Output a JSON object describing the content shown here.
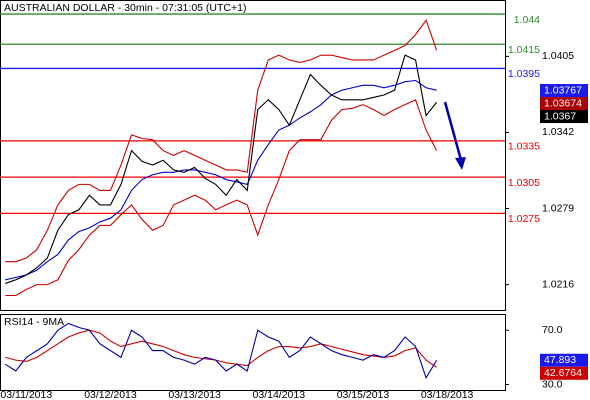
{
  "chart_data": [
    {
      "type": "line",
      "title": "AUSTRALIAN DOLLAR - 30min - 07:31:05 (UTC+1)",
      "ylim": [
        1.0195,
        1.045
      ],
      "yticks": [
        1.0405,
        1.0342,
        1.0279,
        1.0216
      ],
      "levels": [
        {
          "value": 1.044,
          "color": "#2e8b2e"
        },
        {
          "value": 1.0415,
          "color": "#2e8b2e"
        },
        {
          "value": 1.0395,
          "color": "#1a1aee"
        },
        {
          "value": 1.0335,
          "color": "#ee0000"
        },
        {
          "value": 1.0305,
          "color": "#ee0000"
        },
        {
          "value": 1.0275,
          "color": "#ee0000"
        }
      ],
      "markers": [
        {
          "value": 1.03767,
          "color": "#1a1aee"
        },
        {
          "value": 1.03674,
          "color": "#aa0000"
        },
        {
          "value": 1.0367,
          "color": "#000000"
        }
      ],
      "series": [
        {
          "color": "#cc0000",
          "values": [
            1.0235,
            1.0235,
            1.0238,
            1.0245,
            1.0261,
            1.0282,
            1.0294,
            1.0299,
            1.0299,
            1.0294,
            1.0294,
            1.0315,
            1.034,
            1.0337,
            1.0336,
            1.0327,
            1.0323,
            1.0327,
            1.0323,
            1.0319,
            1.0315,
            1.0311,
            1.0311,
            1.0309,
            1.0377,
            1.0402,
            1.0406,
            1.0402,
            1.04,
            1.0402,
            1.0406,
            1.0406,
            1.0404,
            1.0402,
            1.0402,
            1.0402,
            1.0406,
            1.041,
            1.0414,
            1.0423,
            1.0435,
            1.041,
            null,
            null,
            null,
            null,
            null,
            null
          ]
        },
        {
          "color": "#cc0000",
          "values": [
            1.0207,
            1.0207,
            1.0212,
            1.0216,
            1.0216,
            1.022,
            1.0236,
            1.0245,
            1.0257,
            1.0265,
            1.0265,
            1.0274,
            1.0282,
            1.027,
            1.0261,
            1.0265,
            1.0282,
            1.0286,
            1.029,
            1.0286,
            1.0278,
            1.0282,
            1.0286,
            1.0282,
            1.0257,
            1.0282,
            1.0303,
            1.0327,
            1.0336,
            1.0336,
            1.0336,
            1.0352,
            1.0361,
            1.0362,
            1.0365,
            1.0361,
            1.0356,
            1.0361,
            1.0365,
            1.0369,
            1.0344,
            1.0327,
            null,
            null,
            null,
            null,
            null,
            null
          ]
        },
        {
          "color": "#0000cc",
          "values": [
            1.022,
            1.0222,
            1.0224,
            1.0228,
            1.0235,
            1.0241,
            1.0253,
            1.026,
            1.0263,
            1.0268,
            1.0271,
            1.0278,
            1.0294,
            1.0303,
            1.0307,
            1.0309,
            1.0309,
            1.0311,
            1.0311,
            1.0309,
            1.0307,
            1.0303,
            1.0301,
            1.0299,
            1.0319,
            1.0332,
            1.0344,
            1.0348,
            1.0354,
            1.0359,
            1.0365,
            1.0373,
            1.0377,
            1.0379,
            1.0381,
            1.0381,
            1.0379,
            1.0381,
            1.0384,
            1.0385,
            1.0379,
            1.0377,
            null,
            null,
            null,
            null,
            null,
            null
          ]
        },
        {
          "color": "#000000",
          "values": [
            1.0217,
            1.022,
            1.0224,
            1.023,
            1.0238,
            1.0261,
            1.0274,
            1.0278,
            1.029,
            1.0282,
            1.0282,
            1.0299,
            1.0327,
            1.0318,
            1.0315,
            1.0319,
            1.0311,
            1.0309,
            1.0313,
            1.0304,
            1.0299,
            1.029,
            1.0303,
            1.0294,
            1.0361,
            1.0369,
            1.0361,
            1.0348,
            1.0369,
            1.039,
            1.0381,
            1.0373,
            1.0369,
            1.0369,
            1.0369,
            1.0371,
            1.0373,
            1.0377,
            1.0406,
            1.0402,
            1.0356,
            1.0367,
            null,
            null,
            null,
            null,
            null,
            null
          ]
        }
      ]
    },
    {
      "type": "line",
      "title": "RSI14 - 9MA",
      "ylim": [
        26,
        79
      ],
      "yticks": [
        {
          "value": 70,
          "label": "70.0"
        },
        {
          "value": 30,
          "label": "30.0"
        }
      ],
      "categories": [
        null,
        null,
        "03/11/2013",
        null,
        null,
        null,
        null,
        null,
        null,
        null,
        "03/12/2013",
        null,
        null,
        null,
        null,
        null,
        null,
        null,
        "03/13/2013",
        null,
        null,
        null,
        null,
        null,
        null,
        null,
        "03/14/2013",
        null,
        null,
        null,
        null,
        null,
        null,
        null,
        "03/15/2013",
        null,
        null,
        null,
        null,
        null,
        null,
        null,
        "03/18/2013",
        null,
        null,
        null,
        null,
        null
      ],
      "markers": [
        {
          "value": 47.893,
          "color": "#1a1aee"
        },
        {
          "value": 42.6764,
          "color": "#cc0000"
        }
      ],
      "series": [
        {
          "color": "#cc0000",
          "values": [
            50,
            48,
            47,
            50,
            55,
            60,
            65,
            68,
            70,
            68,
            62,
            58,
            60,
            62,
            60,
            58,
            55,
            52,
            50,
            49,
            48,
            46,
            45,
            44,
            50,
            55,
            58,
            58,
            57,
            58,
            60,
            58,
            56,
            54,
            52,
            51,
            50,
            51,
            55,
            57,
            48,
            42.6764,
            null,
            null,
            null,
            null,
            null,
            null
          ]
        },
        {
          "color": "#0000aa",
          "values": [
            45,
            40,
            50,
            55,
            60,
            70,
            75,
            72,
            70,
            60,
            55,
            50,
            70,
            65,
            55,
            55,
            50,
            48,
            45,
            50,
            48,
            40,
            45,
            40,
            70,
            65,
            62,
            50,
            55,
            65,
            60,
            55,
            52,
            50,
            48,
            52,
            50,
            55,
            65,
            58,
            35,
            47.893,
            null,
            null,
            null,
            null,
            null,
            null
          ]
        }
      ]
    }
  ]
}
